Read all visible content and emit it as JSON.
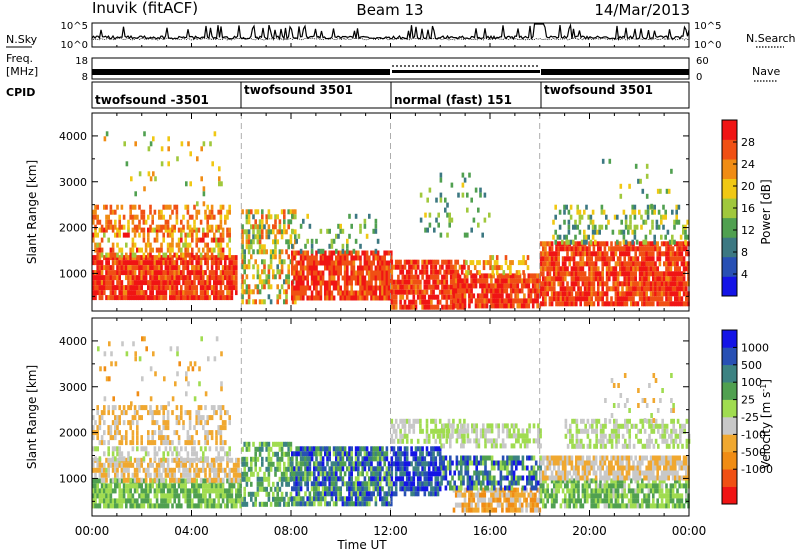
{
  "header": {
    "station": "Inuvik (fitACF)",
    "beam": "Beam 13",
    "date": "14/Mar/2013"
  },
  "top_panels": {
    "nsky_label": "N.Sky",
    "nsearch_label": "N.Search",
    "noise_ticks_left": [
      "10^5",
      "10^0"
    ],
    "noise_ticks_right": [
      "10^5",
      "10^0"
    ],
    "freq_label": "Freq.",
    "freq_unit": "[MHz]",
    "freq_ticks": [
      "18",
      "8"
    ],
    "nave_label": "Nave",
    "nave_ticks": [
      "60",
      "0"
    ],
    "cpid_label": "CPID",
    "cpid_segments": [
      {
        "label": "twofsound -3501",
        "start_hour": 0,
        "end_hour": 6
      },
      {
        "label": "twofsound 3501",
        "start_hour": 6,
        "end_hour": 12
      },
      {
        "label": "normal (fast) 151",
        "start_hour": 12,
        "end_hour": 18
      },
      {
        "label": "twofsound 3501",
        "start_hour": 18,
        "end_hour": 24
      }
    ]
  },
  "chart_data": [
    {
      "type": "heatmap",
      "title": "",
      "xlabel": "Time UT",
      "ylabel": "Slant Range [km]",
      "x_ticks": [
        "00:00",
        "04:00",
        "08:00",
        "12:00",
        "16:00",
        "20:00",
        "00:00"
      ],
      "xlim_hours": [
        0,
        24
      ],
      "y_ticks": [
        1000,
        2000,
        3000,
        4000
      ],
      "ylim": [
        180,
        4500
      ],
      "colorbar": {
        "label": "Power [dB]",
        "ticks": [
          4,
          8,
          12,
          16,
          20,
          24,
          28
        ],
        "range": [
          0,
          32
        ],
        "colors": [
          "#1414e6",
          "#2850b4",
          "#3c7882",
          "#50a050",
          "#a0c83c",
          "#f0c814",
          "#f08c14",
          "#f05014",
          "#f01414"
        ]
      },
      "scatter_regions": [
        {
          "t0": 0,
          "t1": 5.8,
          "r0": 450,
          "r1": 1400,
          "v0": 24,
          "v1": 32,
          "d": 0.9
        },
        {
          "t0": 0,
          "t1": 5.5,
          "r0": 1450,
          "r1": 2000,
          "v0": 16,
          "v1": 30,
          "d": 0.55
        },
        {
          "t0": 0,
          "t1": 5.5,
          "r0": 2000,
          "r1": 2500,
          "v0": 20,
          "v1": 28,
          "d": 0.45
        },
        {
          "t0": 0.2,
          "t1": 5.2,
          "r0": 2500,
          "r1": 4100,
          "v0": 12,
          "v1": 24,
          "d": 0.06
        },
        {
          "t0": 6,
          "t1": 8.2,
          "r0": 350,
          "r1": 2400,
          "v0": 10,
          "v1": 28,
          "d": 0.5
        },
        {
          "t0": 8,
          "t1": 12,
          "r0": 450,
          "r1": 1500,
          "v0": 24,
          "v1": 32,
          "d": 0.85
        },
        {
          "t0": 8,
          "t1": 11.5,
          "r0": 1500,
          "r1": 2300,
          "v0": 8,
          "v1": 20,
          "d": 0.15
        },
        {
          "t0": 12,
          "t1": 15,
          "r0": 300,
          "r1": 1300,
          "v0": 24,
          "v1": 32,
          "d": 0.8
        },
        {
          "t0": 13,
          "t1": 16,
          "r0": 1800,
          "r1": 3200,
          "v0": 8,
          "v1": 20,
          "d": 0.12
        },
        {
          "t0": 14.5,
          "t1": 18,
          "r0": 250,
          "r1": 1000,
          "v0": 24,
          "v1": 32,
          "d": 0.85
        },
        {
          "t0": 15,
          "t1": 17.5,
          "r0": 1000,
          "r1": 1400,
          "v0": 16,
          "v1": 28,
          "d": 0.35
        },
        {
          "t0": 18,
          "t1": 24,
          "r0": 300,
          "r1": 1700,
          "v0": 24,
          "v1": 32,
          "d": 0.85
        },
        {
          "t0": 18.5,
          "t1": 24,
          "r0": 1700,
          "r1": 2500,
          "v0": 8,
          "v1": 20,
          "d": 0.3
        },
        {
          "t0": 20.5,
          "t1": 23.5,
          "r0": 2500,
          "r1": 3500,
          "v0": 8,
          "v1": 20,
          "d": 0.08
        }
      ]
    },
    {
      "type": "heatmap",
      "title": "",
      "xlabel": "Time UT",
      "ylabel": "Slant Range [km]",
      "x_ticks": [
        "00:00",
        "04:00",
        "08:00",
        "12:00",
        "16:00",
        "20:00",
        "00:00"
      ],
      "xlim_hours": [
        0,
        24
      ],
      "y_ticks": [
        1000,
        2000,
        3000,
        4000
      ],
      "ylim": [
        180,
        4500
      ],
      "colorbar": {
        "label": "Velocity [m s^-1]",
        "ticks": [
          "1000",
          "500",
          "100",
          "25",
          "-25",
          "-100",
          "-500",
          "-1000"
        ],
        "range": [
          -1250,
          1250
        ],
        "colors": [
          "#f01414",
          "#f05014",
          "#f08c14",
          "#f0a830",
          "#c8c8c8",
          "#a0dc50",
          "#50a050",
          "#3c8282",
          "#2850b4",
          "#1414e6"
        ]
      },
      "scatter_regions": [
        {
          "t0": 0,
          "t1": 6,
          "r0": 450,
          "r1": 1000,
          "v0": 25,
          "v1": 500,
          "d": 0.85
        },
        {
          "t0": 0,
          "t1": 6,
          "r0": 1000,
          "r1": 1450,
          "v0": -500,
          "v1": 25,
          "d": 0.7
        },
        {
          "t0": 0,
          "t1": 5.5,
          "r0": 1450,
          "r1": 1700,
          "v0": -50,
          "v1": 25,
          "d": 0.4
        },
        {
          "t0": 0,
          "t1": 5.5,
          "r0": 1800,
          "r1": 2600,
          "v0": -500,
          "v1": -100,
          "d": 0.5
        },
        {
          "t0": 0.2,
          "t1": 5.2,
          "r0": 2600,
          "r1": 4100,
          "v0": -600,
          "v1": 100,
          "d": 0.06
        },
        {
          "t0": 6,
          "t1": 8,
          "r0": 450,
          "r1": 1800,
          "v0": 25,
          "v1": 700,
          "d": 0.6
        },
        {
          "t0": 8,
          "t1": 12,
          "r0": 400,
          "r1": 1700,
          "v0": 100,
          "v1": 1200,
          "d": 0.8
        },
        {
          "t0": 12,
          "t1": 14,
          "r0": 700,
          "r1": 1700,
          "v0": 500,
          "v1": 1200,
          "d": 0.8
        },
        {
          "t0": 12,
          "t1": 15,
          "r0": 1800,
          "r1": 2300,
          "v0": -25,
          "v1": 25,
          "d": 0.55
        },
        {
          "t0": 14.5,
          "t1": 18,
          "r0": 350,
          "r1": 800,
          "v0": -700,
          "v1": -100,
          "d": 0.8
        },
        {
          "t0": 14,
          "t1": 18,
          "r0": 800,
          "r1": 1500,
          "v0": 100,
          "v1": 1200,
          "d": 0.6
        },
        {
          "t0": 14,
          "t1": 18,
          "r0": 1700,
          "r1": 2200,
          "v0": -25,
          "v1": 25,
          "d": 0.55
        },
        {
          "t0": 18,
          "t1": 24,
          "r0": 450,
          "r1": 1000,
          "v0": -25,
          "v1": 500,
          "d": 0.8
        },
        {
          "t0": 18,
          "t1": 24,
          "r0": 1000,
          "r1": 1500,
          "v0": -500,
          "v1": -25,
          "d": 0.8
        },
        {
          "t0": 19,
          "t1": 24,
          "r0": 1700,
          "r1": 2300,
          "v0": -25,
          "v1": 25,
          "d": 0.55
        },
        {
          "t0": 20.5,
          "t1": 23.5,
          "r0": 2300,
          "r1": 3300,
          "v0": -400,
          "v1": 100,
          "d": 0.1
        }
      ]
    }
  ]
}
